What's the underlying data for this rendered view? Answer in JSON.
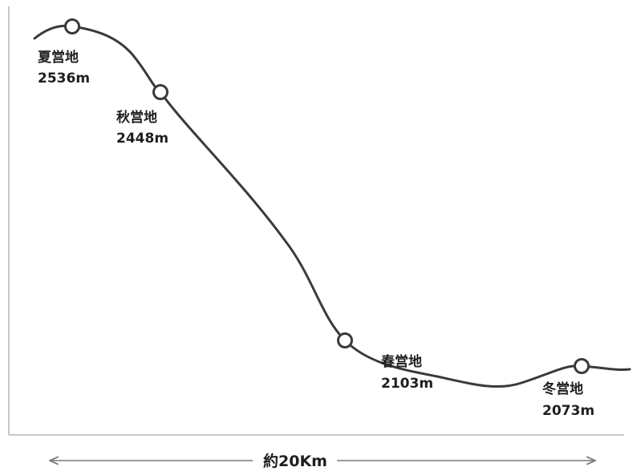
{
  "camps": [
    {
      "name": "夏営地",
      "elevation": "2536m"
    },
    {
      "name": "秋営地",
      "elevation": "2448m"
    },
    {
      "name": "春営地",
      "elevation": "2103m"
    },
    {
      "name": "冬営地",
      "elevation": "2073m"
    }
  ],
  "distance_label": "約20Km",
  "colors": {
    "line": "#3a3a3a",
    "axis": "#b5b5b5",
    "arrow": "#7a7a7a",
    "text": "#1e1e1e"
  }
}
